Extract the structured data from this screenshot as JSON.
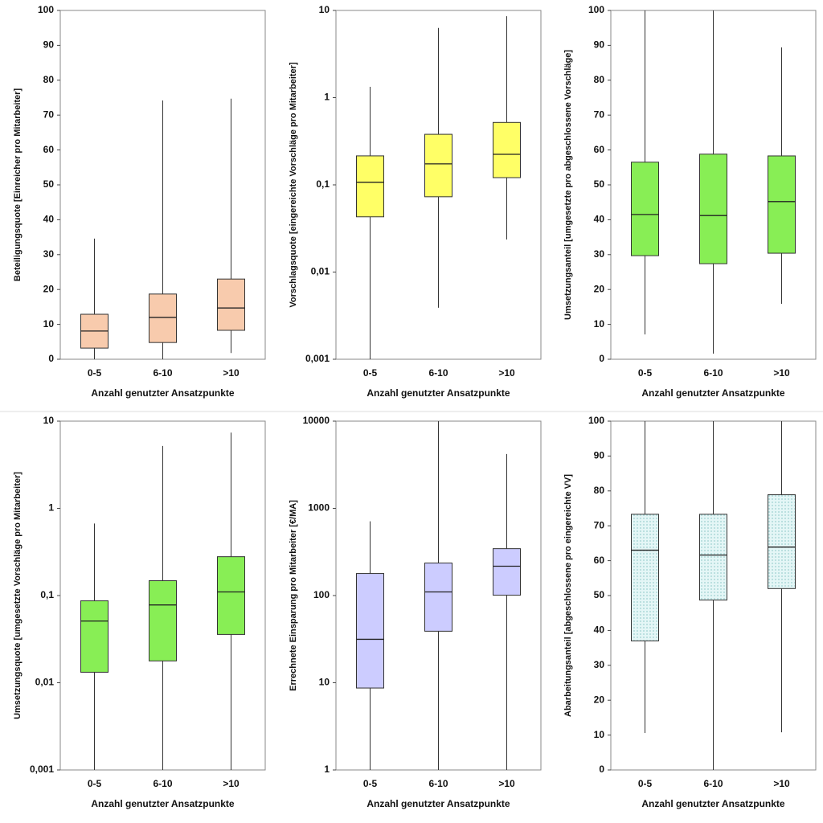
{
  "chart_data": [
    {
      "type": "box",
      "x_label": "Anzahl genutzter Ansatzpunkte",
      "y_label": "Beteiligungsquote [Einreicher pro Mitarbeiter]",
      "categories": [
        "0-5",
        "6-10",
        ">10"
      ],
      "color": "#f8cbad",
      "log_y": false,
      "min": [
        0,
        0,
        1.8
      ],
      "q1": [
        3.2,
        4.8,
        8.3
      ],
      "median": [
        8.1,
        12.0,
        14.7
      ],
      "q3": [
        12.9,
        18.7,
        23.0
      ],
      "max": [
        34.6,
        74.2,
        74.7
      ],
      "ylim": [
        0,
        100
      ],
      "yticks": [
        0,
        10,
        20,
        30,
        40,
        50,
        60,
        70,
        80,
        90,
        100
      ]
    },
    {
      "type": "box",
      "x_label": "Anzahl genutzter Ansatzpunkte",
      "y_label": "Vorschlagsquote [eingereichte Vorschläge pro Mitarbeiter]",
      "categories": [
        "0-5",
        "6-10",
        ">10"
      ],
      "color": "#ffff66",
      "log_y": true,
      "min": [
        0.001,
        0.0039,
        0.0236
      ],
      "q1": [
        0.043,
        0.073,
        0.121
      ],
      "median": [
        0.107,
        0.174,
        0.224
      ],
      "q3": [
        0.215,
        0.38,
        0.52
      ],
      "max": [
        1.33,
        6.3,
        8.6
      ],
      "ylim": [
        0.001,
        10
      ],
      "yticks": [
        {
          "value": 0.001,
          "label": "0,001"
        },
        {
          "value": 0.01,
          "label": "0,01"
        },
        {
          "value": 0.1,
          "label": "0,1"
        },
        1,
        10
      ]
    },
    {
      "type": "box",
      "x_label": "Anzahl genutzter Ansatzpunkte",
      "y_label": "Umsetzungsanteil [umgesetzte pro abgeschlossene Vorschläge]",
      "categories": [
        "0-5",
        "6-10",
        ">10"
      ],
      "color": "#88ee55",
      "log_y": false,
      "min": [
        7.1,
        1.6,
        15.9
      ],
      "q1": [
        29.7,
        27.4,
        30.4
      ],
      "median": [
        41.5,
        41.2,
        45.2
      ],
      "q3": [
        56.5,
        58.8,
        58.3
      ],
      "max": [
        100,
        100,
        89.4
      ],
      "ylim": [
        0,
        100
      ],
      "yticks": [
        0,
        10,
        20,
        30,
        40,
        50,
        60,
        70,
        80,
        90,
        100
      ]
    },
    {
      "type": "box",
      "x_label": "Anzahl genutzter Ansatzpunkte",
      "y_label": "Umsetzungsquote [umgesetzte Vorschläge pro Mitarbeiter]",
      "categories": [
        "0-5",
        "6-10",
        ">10"
      ],
      "color": "#88ee55",
      "log_y": true,
      "min": [
        0.001,
        0.001,
        0.001
      ],
      "q1": [
        0.0132,
        0.0178,
        0.0358
      ],
      "median": [
        0.051,
        0.078,
        0.11
      ],
      "q3": [
        0.087,
        0.148,
        0.279
      ],
      "max": [
        0.67,
        5.2,
        7.4
      ],
      "ylim": [
        0.001,
        10
      ],
      "yticks": [
        {
          "value": 0.001,
          "label": "0,001"
        },
        {
          "value": 0.01,
          "label": "0,01"
        },
        {
          "value": 0.1,
          "label": "0,1"
        },
        1,
        10
      ]
    },
    {
      "type": "box",
      "x_label": "Anzahl genutzter Ansatzpunkte",
      "y_label": "Errechnete Einsparung pro Mitarbeiter [€/MA]",
      "categories": [
        "0-5",
        "6-10",
        ">10"
      ],
      "color": "#ccccff",
      "log_y": true,
      "min": [
        1,
        1,
        1
      ],
      "q1": [
        8.7,
        39,
        101
      ],
      "median": [
        31.5,
        110,
        217
      ],
      "q3": [
        179,
        236,
        345
      ],
      "max": [
        710,
        10000,
        4200
      ],
      "ylim": [
        1,
        10000
      ],
      "yticks": [
        1,
        10,
        100,
        1000,
        10000
      ]
    },
    {
      "type": "box",
      "x_label": "Anzahl genutzter Ansatzpunkte",
      "y_label": "Abarbeitungsanteil [abgeschlossene pro eingereichte VV]",
      "categories": [
        "0-5",
        "6-10",
        ">10"
      ],
      "color": "#e4f6f6",
      "pattern": "dots",
      "log_y": false,
      "min": [
        10.6,
        0,
        10.8
      ],
      "q1": [
        37.0,
        48.7,
        52.0
      ],
      "median": [
        63.0,
        61.6,
        63.9
      ],
      "q3": [
        73.3,
        73.3,
        78.9
      ],
      "max": [
        100,
        100,
        100
      ],
      "ylim": [
        0,
        100
      ],
      "yticks": [
        0,
        10,
        20,
        30,
        40,
        50,
        60,
        70,
        80,
        90,
        100
      ]
    }
  ]
}
